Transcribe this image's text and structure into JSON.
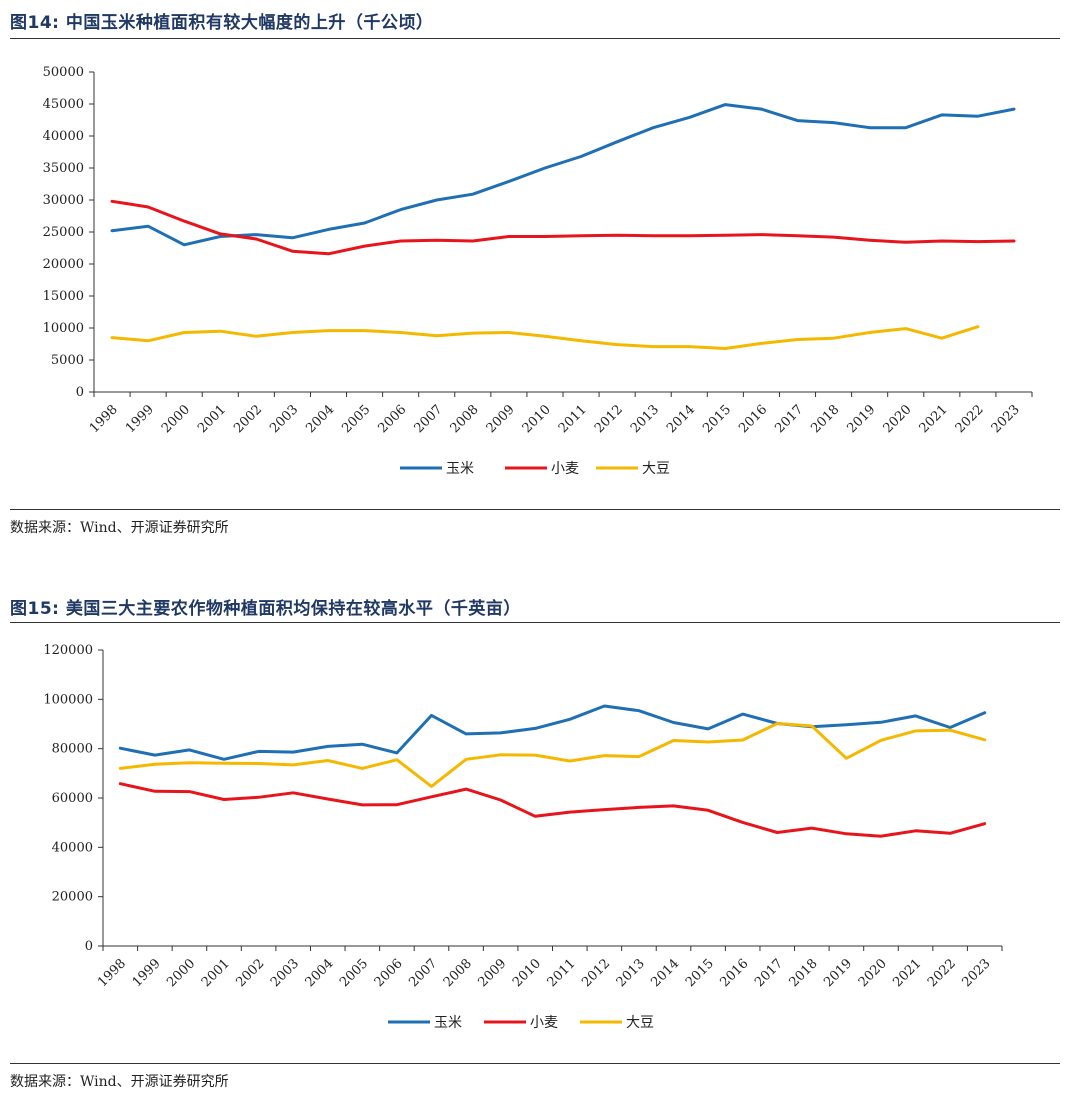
{
  "figures": [
    {
      "title": "图14: 中国玉米种植面积有较大幅度的上升（千公顷）",
      "source": "数据来源：Wind、开源证券研究所",
      "chart_data": {
        "type": "line",
        "title": "图14: 中国玉米种植面积有较大幅度的上升（千公顷）",
        "xlabel": "",
        "ylabel": "",
        "categories": [
          "1998",
          "1999",
          "2000",
          "2001",
          "2002",
          "2003",
          "2004",
          "2005",
          "2006",
          "2007",
          "2008",
          "2009",
          "2010",
          "2011",
          "2012",
          "2013",
          "2014",
          "2015",
          "2016",
          "2017",
          "2018",
          "2019",
          "2020",
          "2021",
          "2022",
          "2023"
        ],
        "ylim": [
          0,
          50000
        ],
        "yticks": [
          0,
          5000,
          10000,
          15000,
          20000,
          25000,
          30000,
          35000,
          40000,
          45000,
          50000
        ],
        "legend_position": "bottom",
        "grid": false,
        "series": [
          {
            "name": "玉米",
            "color": "#1f6fb5",
            "values": [
              25200,
              25900,
              23000,
              24300,
              24600,
              24100,
              25400,
              26400,
              28500,
              30000,
              30900,
              32900,
              35000,
              36800,
              39100,
              41300,
              42900,
              44900,
              44200,
              42400,
              42100,
              41300,
              41300,
              43300,
              43100,
              44200
            ]
          },
          {
            "name": "小麦",
            "color": "#e8141b",
            "values": [
              29800,
              28900,
              26700,
              24700,
              23900,
              22000,
              21600,
              22800,
              23600,
              23700,
              23600,
              24300,
              24300,
              24400,
              24500,
              24400,
              24400,
              24500,
              24600,
              24400,
              24200,
              23700,
              23400,
              23600,
              23500,
              23600
            ]
          },
          {
            "name": "大豆",
            "color": "#f5b800",
            "values": [
              8500,
              8000,
              9300,
              9500,
              8700,
              9300,
              9600,
              9600,
              9300,
              8800,
              9200,
              9300,
              8700,
              8000,
              7400,
              7100,
              7100,
              6800,
              7600,
              8200,
              8400,
              9300,
              9900,
              8400,
              10200,
              null
            ]
          }
        ]
      }
    },
    {
      "title": "图15: 美国三大主要农作物种植面积均保持在较高水平（千英亩）",
      "source": "数据来源：Wind、开源证券研究所",
      "chart_data": {
        "type": "line",
        "title": "图15: 美国三大主要农作物种植面积均保持在较高水平（千英亩）",
        "xlabel": "",
        "ylabel": "",
        "categories": [
          "1998",
          "1999",
          "2000",
          "2001",
          "2002",
          "2003",
          "2004",
          "2005",
          "2006",
          "2007",
          "2008",
          "2009",
          "2010",
          "2011",
          "2012",
          "2013",
          "2014",
          "2015",
          "2016",
          "2017",
          "2018",
          "2019",
          "2020",
          "2021",
          "2022",
          "2023"
        ],
        "ylim": [
          0,
          120000
        ],
        "yticks": [
          0,
          20000,
          40000,
          60000,
          80000,
          100000,
          120000
        ],
        "legend_position": "bottom",
        "grid": false,
        "series": [
          {
            "name": "玉米",
            "color": "#1f6fb5",
            "values": [
              80200,
              77400,
              79500,
              75700,
              78900,
              78600,
              80900,
              81800,
              78300,
              93500,
              86000,
              86400,
              88200,
              91900,
              97300,
              95400,
              90600,
              88000,
              94000,
              90200,
              88900,
              89700,
              90700,
              93300,
              88600,
              94600
            ]
          },
          {
            "name": "小麦",
            "color": "#e8141b",
            "values": [
              65800,
              62700,
              62600,
              59400,
              60300,
              62100,
              59600,
              57200,
              57300,
              60500,
              63600,
              59200,
              52600,
              54300,
              55300,
              56200,
              56800,
              55000,
              50100,
              46000,
              47800,
              45500,
              44500,
              46700,
              45700,
              49600
            ]
          },
          {
            "name": "大豆",
            "color": "#f5b800",
            "values": [
              72000,
              73700,
              74300,
              74100,
              74000,
              73400,
              75200,
              72000,
              75500,
              64700,
              75700,
              77500,
              77400,
              75000,
              77200,
              76800,
              83300,
              82700,
              83500,
              90200,
              89200,
              76100,
              83400,
              87200,
              87500,
              83600
            ]
          }
        ]
      }
    }
  ]
}
